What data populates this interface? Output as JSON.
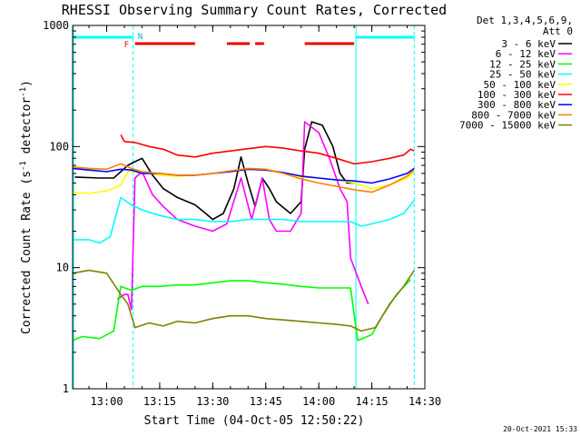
{
  "chart_data": {
    "type": "line",
    "title": "RHESSI Observing Summary Count Rates, Corrected",
    "xlabel": "Start Time (04-Oct-05 12:50:22)",
    "ylabel_parts": [
      "Corrected Count Rate (s",
      "-1",
      " detector",
      "-1",
      ")"
    ],
    "yscale": "log",
    "ylim": [
      1,
      1000
    ],
    "xlim_minutes": [
      "12:50:22",
      "14:30:00"
    ],
    "x_ticks": [
      "13:00",
      "13:15",
      "13:30",
      "13:45",
      "14:00",
      "14:15",
      "14:30"
    ],
    "y_ticks": [
      "1",
      "10",
      "100",
      "1000"
    ],
    "footer_date": "20-Oct-2021 15:33",
    "legend_header": [
      "Det 1,3,4,5,6,9,",
      "Att 0"
    ],
    "night_label": "N",
    "flare_label": "F",
    "night_intervals": [
      [
        "12:50:22",
        "13:07:30"
      ],
      [
        "14:10:30",
        "14:27:00"
      ]
    ],
    "night_boundaries": [
      "13:07:30",
      "14:10:30",
      "14:27:00"
    ],
    "flare_intervals": [
      [
        "13:08:00",
        "13:25:00"
      ],
      [
        "13:34:00",
        "13:40:30"
      ],
      [
        "13:42:00",
        "13:44:30"
      ],
      [
        "13:56:00",
        "14:10:00"
      ]
    ],
    "series": [
      {
        "name": "3 - 6 keV",
        "color": "#000000",
        "points": [
          [
            "12:51",
            "56"
          ],
          [
            "12:58",
            "55"
          ],
          [
            "13:02",
            "55"
          ],
          [
            "13:04",
            "62"
          ],
          [
            "13:06",
            "70"
          ],
          [
            "13:08",
            "75"
          ],
          [
            "13:10",
            "80"
          ],
          [
            "13:13",
            "58"
          ],
          [
            "13:16",
            "45"
          ],
          [
            "13:20",
            "38"
          ],
          [
            "13:25",
            "33"
          ],
          [
            "13:28",
            "28"
          ],
          [
            "13:30",
            "25"
          ],
          [
            "13:33",
            "28"
          ],
          [
            "13:36",
            "45"
          ],
          [
            "13:38",
            "82"
          ],
          [
            "13:40",
            "50"
          ],
          [
            "13:42",
            "32"
          ],
          [
            "13:44",
            "55"
          ],
          [
            "13:46",
            "45"
          ],
          [
            "13:48",
            "35"
          ],
          [
            "13:52",
            "28"
          ],
          [
            "13:55",
            "35"
          ],
          [
            "13:56",
            "95"
          ],
          [
            "13:58",
            "160"
          ],
          [
            "14:01",
            "150"
          ],
          [
            "14:04",
            "100"
          ],
          [
            "14:06",
            "60"
          ],
          [
            "14:08",
            "50"
          ],
          [
            "14:10",
            "50"
          ]
        ]
      },
      {
        "name": "6 - 12 keV",
        "color": "#ff00ff",
        "points": [
          [
            "13:03",
            "5.5"
          ],
          [
            "13:05",
            "6"
          ],
          [
            "13:06",
            "6"
          ],
          [
            "13:07",
            "4.5"
          ],
          [
            "13:08",
            "55"
          ],
          [
            "13:10",
            "62"
          ],
          [
            "13:13",
            "40"
          ],
          [
            "13:16",
            "32"
          ],
          [
            "13:20",
            "25"
          ],
          [
            "13:25",
            "22"
          ],
          [
            "13:30",
            "20"
          ],
          [
            "13:34",
            "23"
          ],
          [
            "13:38",
            "55"
          ],
          [
            "13:41",
            "25"
          ],
          [
            "13:44",
            "55"
          ],
          [
            "13:46",
            "25"
          ],
          [
            "13:48",
            "20"
          ],
          [
            "13:52",
            "20"
          ],
          [
            "13:55",
            "28"
          ],
          [
            "13:56",
            "160"
          ],
          [
            "14:00",
            "130"
          ],
          [
            "14:03",
            "80"
          ],
          [
            "14:06",
            "45"
          ],
          [
            "14:08",
            "35"
          ],
          [
            "14:09",
            "12"
          ],
          [
            "14:12",
            "7"
          ],
          [
            "14:14",
            "5"
          ]
        ]
      },
      {
        "name": "12 - 25 keV",
        "color": "#00ff00",
        "points": [
          [
            "12:50:22",
            "2.5"
          ],
          [
            "12:53",
            "2.7"
          ],
          [
            "12:58",
            "2.6"
          ],
          [
            "13:02",
            "3"
          ],
          [
            "13:04",
            "7"
          ],
          [
            "13:07",
            "6.5"
          ],
          [
            "13:10",
            "7"
          ],
          [
            "13:15",
            "7"
          ],
          [
            "13:20",
            "7.2"
          ],
          [
            "13:25",
            "7.2"
          ],
          [
            "13:30",
            "7.5"
          ],
          [
            "13:35",
            "7.8"
          ],
          [
            "13:40",
            "7.8"
          ],
          [
            "13:45",
            "7.5"
          ],
          [
            "13:50",
            "7.3"
          ],
          [
            "13:55",
            "7"
          ],
          [
            "14:00",
            "6.8"
          ],
          [
            "14:05",
            "6.8"
          ],
          [
            "14:09",
            "6.8"
          ],
          [
            "14:11",
            "2.5"
          ],
          [
            "14:15",
            "2.8"
          ],
          [
            "14:18",
            "4"
          ],
          [
            "14:22",
            "6"
          ],
          [
            "14:26",
            "8"
          ]
        ]
      },
      {
        "name": "25 - 50 keV",
        "color": "#00ffff",
        "points": [
          [
            "12:50:22",
            "17"
          ],
          [
            "12:55",
            "17"
          ],
          [
            "12:58",
            "16"
          ],
          [
            "13:01",
            "18"
          ],
          [
            "13:04",
            "38"
          ],
          [
            "13:07",
            "33"
          ],
          [
            "13:10",
            "30"
          ],
          [
            "13:15",
            "27"
          ],
          [
            "13:20",
            "25"
          ],
          [
            "13:25",
            "25"
          ],
          [
            "13:30",
            "24"
          ],
          [
            "13:35",
            "24"
          ],
          [
            "13:40",
            "25"
          ],
          [
            "13:45",
            "25"
          ],
          [
            "13:50",
            "25"
          ],
          [
            "13:55",
            "24"
          ],
          [
            "14:00",
            "24"
          ],
          [
            "14:05",
            "24"
          ],
          [
            "14:09",
            "24"
          ],
          [
            "14:12",
            "22"
          ],
          [
            "14:15",
            "23"
          ],
          [
            "14:20",
            "25"
          ],
          [
            "14:24",
            "28"
          ],
          [
            "14:27",
            "36"
          ]
        ]
      },
      {
        "name": "50 - 100 keV",
        "color": "#ffff00",
        "points": [
          [
            "12:50:22",
            "42"
          ],
          [
            "12:55",
            "41"
          ],
          [
            "13:00",
            "43"
          ],
          [
            "13:04",
            "48"
          ],
          [
            "13:06",
            "62"
          ],
          [
            "13:10",
            "62"
          ],
          [
            "13:15",
            "58"
          ],
          [
            "13:20",
            "57"
          ],
          [
            "13:25",
            "58"
          ],
          [
            "13:30",
            "60"
          ],
          [
            "13:35",
            "62"
          ],
          [
            "13:40",
            "65"
          ],
          [
            "13:45",
            "64"
          ],
          [
            "13:50",
            "60"
          ],
          [
            "13:55",
            "56"
          ],
          [
            "14:00",
            "55"
          ],
          [
            "14:05",
            "53"
          ],
          [
            "14:10",
            "50"
          ],
          [
            "14:15",
            "45"
          ],
          [
            "14:20",
            "48"
          ],
          [
            "14:25",
            "55"
          ],
          [
            "14:27",
            "62"
          ]
        ]
      },
      {
        "name": "100 - 300 keV",
        "color": "#ff0000",
        "points": [
          [
            "13:04",
            "125"
          ],
          [
            "13:05",
            "110"
          ],
          [
            "13:08",
            "108"
          ],
          [
            "13:12",
            "100"
          ],
          [
            "13:16",
            "95"
          ],
          [
            "13:20",
            "85"
          ],
          [
            "13:25",
            "82"
          ],
          [
            "13:30",
            "88"
          ],
          [
            "13:35",
            "92"
          ],
          [
            "13:40",
            "96"
          ],
          [
            "13:45",
            "100"
          ],
          [
            "13:50",
            "97"
          ],
          [
            "13:55",
            "92"
          ],
          [
            "14:00",
            "88"
          ],
          [
            "14:05",
            "80"
          ],
          [
            "14:10",
            "72"
          ],
          [
            "14:15",
            "75"
          ],
          [
            "14:20",
            "80"
          ],
          [
            "14:24",
            "85"
          ],
          [
            "14:26",
            "95"
          ],
          [
            "14:27",
            "92"
          ]
        ]
      },
      {
        "name": "300 - 800 keV",
        "color": "#0000ff",
        "points": [
          [
            "12:50:22",
            "66"
          ],
          [
            "12:55",
            "64"
          ],
          [
            "13:00",
            "62"
          ],
          [
            "13:04",
            "65"
          ],
          [
            "13:07",
            "64"
          ],
          [
            "13:10",
            "60"
          ],
          [
            "13:15",
            "60"
          ],
          [
            "13:20",
            "58"
          ],
          [
            "13:25",
            "58"
          ],
          [
            "13:30",
            "60"
          ],
          [
            "13:35",
            "62"
          ],
          [
            "13:40",
            "65"
          ],
          [
            "13:45",
            "64"
          ],
          [
            "13:50",
            "61"
          ],
          [
            "13:55",
            "57"
          ],
          [
            "14:00",
            "55"
          ],
          [
            "14:05",
            "53"
          ],
          [
            "14:10",
            "52"
          ],
          [
            "14:15",
            "50"
          ],
          [
            "14:20",
            "54"
          ],
          [
            "14:25",
            "60"
          ],
          [
            "14:27",
            "66"
          ]
        ]
      },
      {
        "name": "800 - 7000 keV",
        "color": "#ff8000",
        "points": [
          [
            "12:50:22",
            "68"
          ],
          [
            "12:55",
            "66"
          ],
          [
            "13:00",
            "65"
          ],
          [
            "13:04",
            "72"
          ],
          [
            "13:07",
            "66"
          ],
          [
            "13:10",
            "62"
          ],
          [
            "13:15",
            "60"
          ],
          [
            "13:20",
            "58"
          ],
          [
            "13:25",
            "58"
          ],
          [
            "13:30",
            "60"
          ],
          [
            "13:35",
            "63"
          ],
          [
            "13:40",
            "66"
          ],
          [
            "13:45",
            "65"
          ],
          [
            "13:50",
            "60"
          ],
          [
            "13:55",
            "54"
          ],
          [
            "14:00",
            "50"
          ],
          [
            "14:05",
            "47"
          ],
          [
            "14:10",
            "44"
          ],
          [
            "14:15",
            "42"
          ],
          [
            "14:20",
            "48"
          ],
          [
            "14:25",
            "57"
          ],
          [
            "14:27",
            "64"
          ]
        ]
      },
      {
        "name": "7000 - 15000 keV",
        "color": "#808000",
        "points": [
          [
            "12:50:22",
            "9"
          ],
          [
            "12:55",
            "9.5"
          ],
          [
            "13:00",
            "9"
          ],
          [
            "13:04",
            "6"
          ],
          [
            "13:06",
            "5"
          ],
          [
            "13:08",
            "3.2"
          ],
          [
            "13:12",
            "3.5"
          ],
          [
            "13:16",
            "3.3"
          ],
          [
            "13:20",
            "3.6"
          ],
          [
            "13:25",
            "3.5"
          ],
          [
            "13:30",
            "3.8"
          ],
          [
            "13:35",
            "4"
          ],
          [
            "13:40",
            "4"
          ],
          [
            "13:45",
            "3.8"
          ],
          [
            "13:50",
            "3.7"
          ],
          [
            "13:55",
            "3.6"
          ],
          [
            "14:00",
            "3.5"
          ],
          [
            "14:05",
            "3.4"
          ],
          [
            "14:09",
            "3.3"
          ],
          [
            "14:12",
            "3"
          ],
          [
            "14:16",
            "3.2"
          ],
          [
            "14:20",
            "5"
          ],
          [
            "14:24",
            "7"
          ],
          [
            "14:27",
            "9.5"
          ]
        ]
      }
    ]
  }
}
